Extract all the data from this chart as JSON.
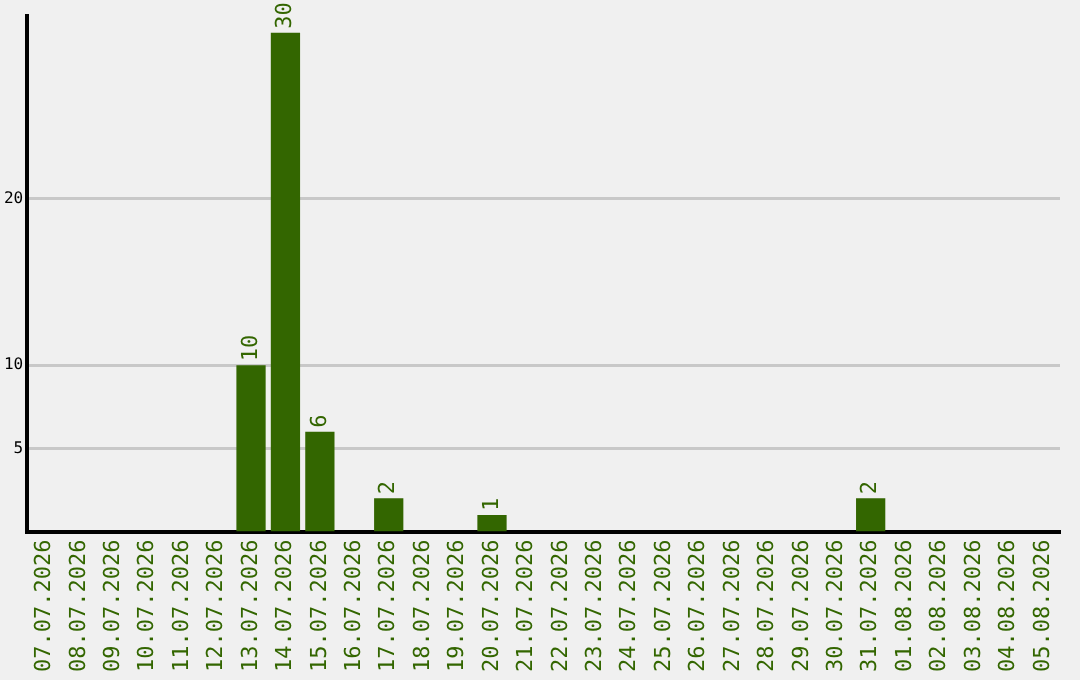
{
  "chart_data": {
    "type": "bar",
    "categories": [
      "07.07.2026",
      "08.07.2026",
      "09.07.2026",
      "10.07.2026",
      "11.07.2026",
      "12.07.2026",
      "13.07.2026",
      "14.07.2026",
      "15.07.2026",
      "16.07.2026",
      "17.07.2026",
      "18.07.2026",
      "19.07.2026",
      "20.07.2026",
      "21.07.2026",
      "22.07.2026",
      "23.07.2026",
      "24.07.2026",
      "25.07.2026",
      "26.07.2026",
      "27.07.2026",
      "28.07.2026",
      "29.07.2026",
      "30.07.2026",
      "31.07.2026",
      "01.08.2026",
      "02.08.2026",
      "03.08.2026",
      "04.08.2026",
      "05.08.2026"
    ],
    "values": [
      null,
      null,
      null,
      null,
      null,
      null,
      10,
      30,
      6,
      null,
      2,
      null,
      null,
      1,
      null,
      null,
      null,
      null,
      null,
      null,
      null,
      null,
      null,
      null,
      2,
      null,
      null,
      null,
      null,
      null
    ],
    "color": "#336600",
    "ylim": [
      0,
      31
    ],
    "yticks": [
      5,
      10,
      20
    ],
    "grid": "y",
    "data_labels": true
  }
}
